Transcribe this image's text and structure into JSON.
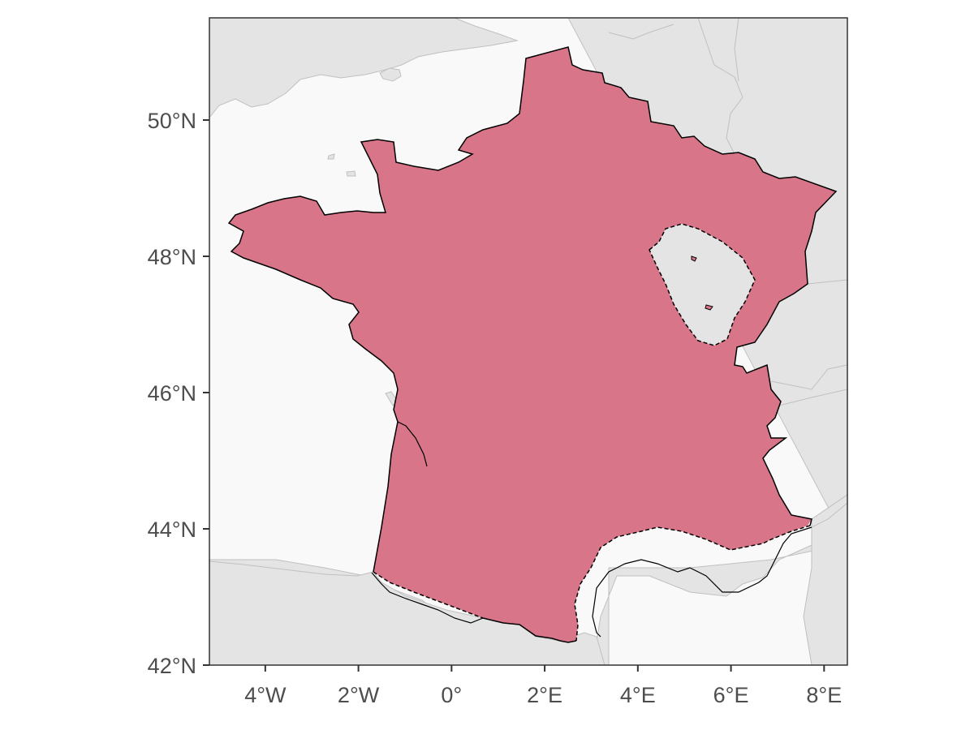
{
  "map": {
    "colors": {
      "ocean": "#f9f9f9",
      "land": "#e4e4e4",
      "land_border": "#c0c0c0",
      "range_fill": "#d97589",
      "range_outline": "#000000",
      "axis": "#333333",
      "tick_text": "#4d4d4d"
    },
    "range_outline_style": "solid along coast and borders, dashed where range boundary is inland",
    "x_ticks": [
      {
        "value": -4,
        "label": "4°W"
      },
      {
        "value": -2,
        "label": "2°W"
      },
      {
        "value": 0,
        "label": "0°"
      },
      {
        "value": 2,
        "label": "2°E"
      },
      {
        "value": 4,
        "label": "4°E"
      },
      {
        "value": 6,
        "label": "6°E"
      },
      {
        "value": 8,
        "label": "8°E"
      }
    ],
    "y_ticks": [
      {
        "value": 42,
        "label": "42°N"
      },
      {
        "value": 44,
        "label": "44°N"
      },
      {
        "value": 46,
        "label": "46°N"
      },
      {
        "value": 48,
        "label": "48°N"
      },
      {
        "value": 50,
        "label": "50°N"
      }
    ],
    "lon_range": [
      -5.2,
      8.5
    ],
    "lat_range": [
      42,
      51.5
    ]
  }
}
